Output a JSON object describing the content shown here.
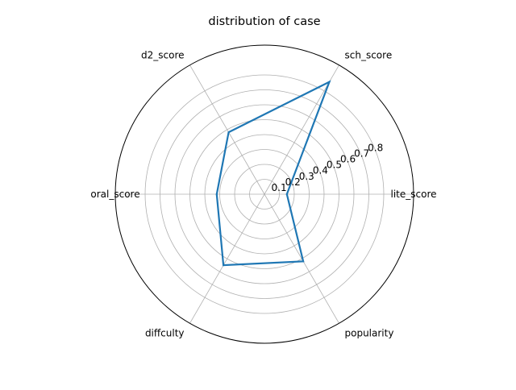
{
  "chart_data": {
    "type": "radar",
    "title": "distribution of case",
    "categories": [
      "lite_score",
      "sch_score",
      "d2_score",
      "oral_score",
      "diffculty",
      "popularity"
    ],
    "series": [
      {
        "values": [
          0.15,
          0.87,
          0.48,
          0.32,
          0.55,
          0.52
        ],
        "color": "#1f77b4"
      }
    ],
    "rlim": [
      0,
      1
    ],
    "rticks": [
      0.1,
      0.2,
      0.3,
      0.4,
      0.5,
      0.6,
      0.7,
      0.8
    ],
    "rtick_labels": [
      "0.1",
      "0.2",
      "0.3",
      "0.4",
      "0.5",
      "0.6",
      "0.7",
      "0.8"
    ],
    "grid": true,
    "grid_color": "#b0b0b0",
    "frame_color": "#000000"
  }
}
